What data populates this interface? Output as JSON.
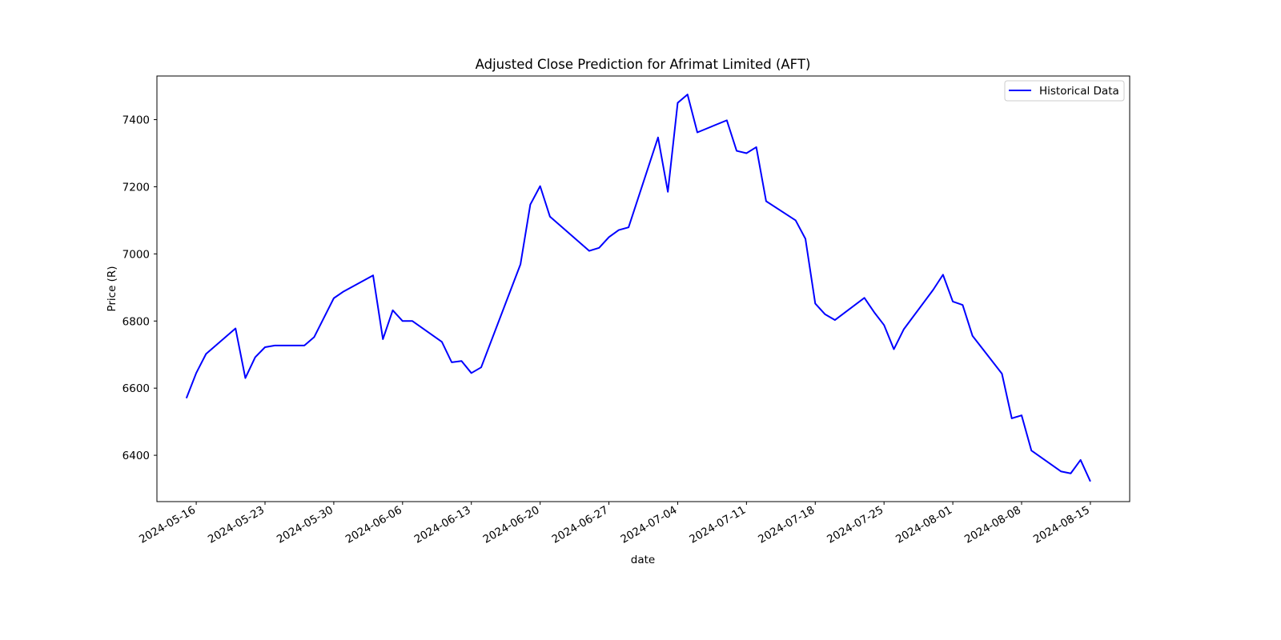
{
  "chart_data": {
    "type": "line",
    "title": "Adjusted Close Prediction for Afrimat Limited (AFT)",
    "xlabel": "date",
    "ylabel": "Price (R)",
    "xlim": [
      "2024-05-12",
      "2024-08-19"
    ],
    "ylim": [
      6262,
      7530
    ],
    "xticks": [
      "2024-05-16",
      "2024-05-23",
      "2024-05-30",
      "2024-06-06",
      "2024-06-13",
      "2024-06-20",
      "2024-06-27",
      "2024-07-04",
      "2024-07-11",
      "2024-07-18",
      "2024-07-25",
      "2024-08-01",
      "2024-08-08",
      "2024-08-15"
    ],
    "yticks": [
      6400,
      6600,
      6800,
      7000,
      7200,
      7400
    ],
    "grid": false,
    "legend": {
      "position": "top-right",
      "entries": [
        "Historical Data"
      ]
    },
    "series": [
      {
        "name": "Historical Data",
        "color": "#0000ff",
        "x": [
          "2024-05-15",
          "2024-05-16",
          "2024-05-17",
          "2024-05-20",
          "2024-05-21",
          "2024-05-22",
          "2024-05-23",
          "2024-05-24",
          "2024-05-27",
          "2024-05-28",
          "2024-05-30",
          "2024-05-31",
          "2024-06-03",
          "2024-06-04",
          "2024-06-05",
          "2024-06-06",
          "2024-06-07",
          "2024-06-10",
          "2024-06-11",
          "2024-06-12",
          "2024-06-13",
          "2024-06-14",
          "2024-06-18",
          "2024-06-19",
          "2024-06-20",
          "2024-06-21",
          "2024-06-25",
          "2024-06-26",
          "2024-06-27",
          "2024-06-28",
          "2024-06-29",
          "2024-07-02",
          "2024-07-03",
          "2024-07-04",
          "2024-07-05",
          "2024-07-06",
          "2024-07-09",
          "2024-07-10",
          "2024-07-11",
          "2024-07-12",
          "2024-07-13",
          "2024-07-16",
          "2024-07-17",
          "2024-07-18",
          "2024-07-19",
          "2024-07-20",
          "2024-07-23",
          "2024-07-24",
          "2024-07-25",
          "2024-07-26",
          "2024-07-27",
          "2024-07-30",
          "2024-07-31",
          "2024-08-01",
          "2024-08-02",
          "2024-08-03",
          "2024-08-06",
          "2024-08-07",
          "2024-08-08",
          "2024-08-09",
          "2024-08-12",
          "2024-08-13",
          "2024-08-14",
          "2024-08-15"
        ],
        "y": [
          6570,
          6645,
          6702,
          6778,
          6630,
          6692,
          6722,
          6727,
          6727,
          6752,
          6868,
          6888,
          6936,
          6746,
          6832,
          6800,
          6800,
          6738,
          6677,
          6681,
          6645,
          6662,
          6969,
          7147,
          7202,
          7111,
          7009,
          7018,
          7050,
          7071,
          7079,
          7347,
          7185,
          7450,
          7475,
          7362,
          7398,
          7307,
          7300,
          7318,
          7157,
          7100,
          7045,
          6852,
          6820,
          6803,
          6869,
          6826,
          6788,
          6716,
          6775,
          6893,
          6938,
          6858,
          6848,
          6756,
          6643,
          6510,
          6519,
          6414,
          6352,
          6346,
          6386,
          6322
        ]
      }
    ]
  }
}
